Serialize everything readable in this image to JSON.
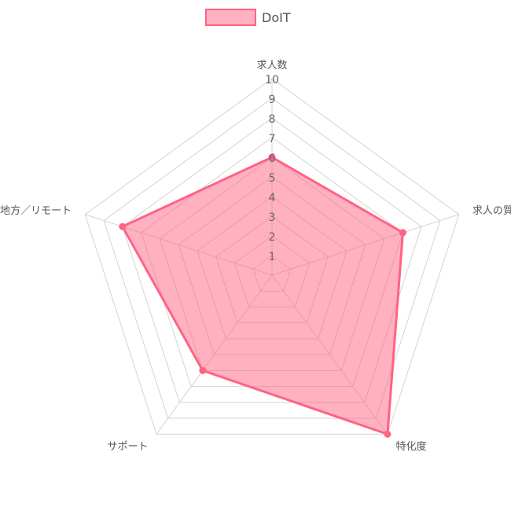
{
  "chart_data": {
    "type": "radar",
    "axes": [
      "求人数",
      "求人の質",
      "特化度",
      "サポート",
      "地方／リモート"
    ],
    "series": [
      {
        "name": "DoIT",
        "values": [
          6,
          7,
          10,
          6,
          8
        ]
      }
    ],
    "range": [
      0,
      10
    ],
    "ticks": [
      "1",
      "2",
      "3",
      "4",
      "5",
      "6",
      "7",
      "8",
      "9",
      "10"
    ],
    "legend_position": "top-center",
    "grid": true,
    "colors": {
      "fill": "#ff6384",
      "fill_opacity": 0.5,
      "stroke": "#ff6384",
      "grid": "#d3d3d3"
    }
  }
}
